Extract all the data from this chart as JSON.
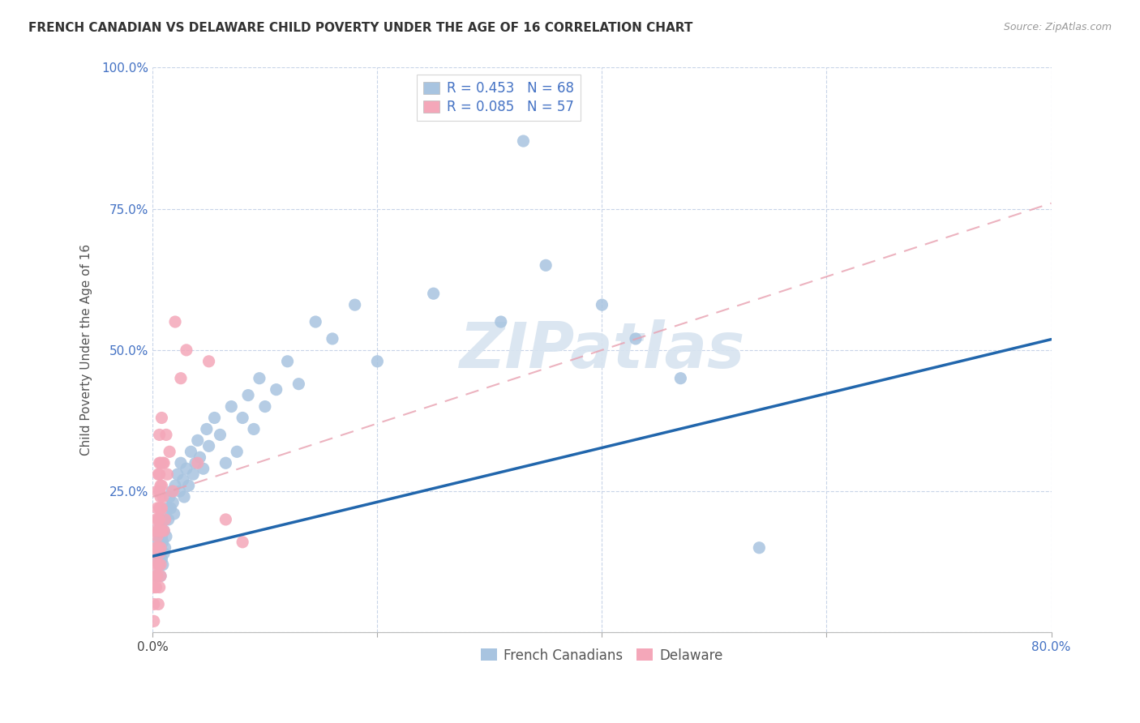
{
  "title": "FRENCH CANADIAN VS DELAWARE CHILD POVERTY UNDER THE AGE OF 16 CORRELATION CHART",
  "source": "Source: ZipAtlas.com",
  "ylabel": "Child Poverty Under the Age of 16",
  "xlim": [
    0,
    0.8
  ],
  "ylim": [
    0,
    1.0
  ],
  "legend_labels": [
    "French Canadians",
    "Delaware"
  ],
  "r_french": 0.453,
  "n_french": 68,
  "r_delaware": 0.085,
  "n_delaware": 57,
  "french_color": "#a8c4e0",
  "delaware_color": "#f4a7b9",
  "french_line_color": "#2166ac",
  "delaware_line_color": "#e8a0b0",
  "background_color": "#ffffff",
  "grid_color": "#c8d4e8",
  "watermark_color": "#d8e4f0",
  "french_line_intercept": 0.135,
  "french_line_slope": 0.48,
  "delaware_line_intercept": 0.24,
  "delaware_line_slope": 0.65,
  "french_scatter_x": [
    0.003,
    0.004,
    0.004,
    0.005,
    0.005,
    0.006,
    0.006,
    0.006,
    0.007,
    0.007,
    0.007,
    0.008,
    0.008,
    0.009,
    0.009,
    0.01,
    0.01,
    0.011,
    0.011,
    0.012,
    0.013,
    0.014,
    0.015,
    0.016,
    0.017,
    0.018,
    0.019,
    0.02,
    0.022,
    0.024,
    0.025,
    0.027,
    0.028,
    0.03,
    0.032,
    0.034,
    0.036,
    0.038,
    0.04,
    0.042,
    0.045,
    0.048,
    0.05,
    0.055,
    0.06,
    0.065,
    0.07,
    0.075,
    0.08,
    0.085,
    0.09,
    0.095,
    0.1,
    0.11,
    0.12,
    0.13,
    0.145,
    0.16,
    0.18,
    0.2,
    0.25,
    0.31,
    0.35,
    0.4,
    0.43,
    0.47,
    0.54,
    0.33
  ],
  "french_scatter_y": [
    0.1,
    0.13,
    0.16,
    0.14,
    0.18,
    0.12,
    0.17,
    0.2,
    0.1,
    0.15,
    0.19,
    0.13,
    0.17,
    0.12,
    0.16,
    0.14,
    0.18,
    0.15,
    0.2,
    0.17,
    0.22,
    0.2,
    0.24,
    0.22,
    0.25,
    0.23,
    0.21,
    0.26,
    0.28,
    0.25,
    0.3,
    0.27,
    0.24,
    0.29,
    0.26,
    0.32,
    0.28,
    0.3,
    0.34,
    0.31,
    0.29,
    0.36,
    0.33,
    0.38,
    0.35,
    0.3,
    0.4,
    0.32,
    0.38,
    0.42,
    0.36,
    0.45,
    0.4,
    0.43,
    0.48,
    0.44,
    0.55,
    0.52,
    0.58,
    0.48,
    0.6,
    0.55,
    0.65,
    0.58,
    0.52,
    0.45,
    0.15,
    0.87
  ],
  "delaware_scatter_x": [
    0.001,
    0.001,
    0.001,
    0.002,
    0.002,
    0.002,
    0.003,
    0.003,
    0.003,
    0.003,
    0.004,
    0.004,
    0.004,
    0.004,
    0.005,
    0.005,
    0.005,
    0.005,
    0.005,
    0.005,
    0.006,
    0.006,
    0.006,
    0.006,
    0.006,
    0.006,
    0.006,
    0.006,
    0.006,
    0.007,
    0.007,
    0.007,
    0.007,
    0.007,
    0.007,
    0.007,
    0.007,
    0.008,
    0.008,
    0.008,
    0.008,
    0.009,
    0.009,
    0.01,
    0.01,
    0.011,
    0.012,
    0.013,
    0.015,
    0.018,
    0.02,
    0.025,
    0.03,
    0.04,
    0.05,
    0.065,
    0.08
  ],
  "delaware_scatter_y": [
    0.02,
    0.08,
    0.05,
    0.14,
    0.1,
    0.18,
    0.12,
    0.2,
    0.15,
    0.08,
    0.17,
    0.22,
    0.1,
    0.25,
    0.28,
    0.18,
    0.12,
    0.2,
    0.15,
    0.05,
    0.3,
    0.08,
    0.22,
    0.35,
    0.14,
    0.25,
    0.18,
    0.2,
    0.28,
    0.15,
    0.12,
    0.22,
    0.26,
    0.18,
    0.3,
    0.24,
    0.1,
    0.22,
    0.26,
    0.18,
    0.38,
    0.3,
    0.24,
    0.18,
    0.3,
    0.2,
    0.35,
    0.28,
    0.32,
    0.25,
    0.55,
    0.45,
    0.5,
    0.3,
    0.48,
    0.2,
    0.16
  ]
}
